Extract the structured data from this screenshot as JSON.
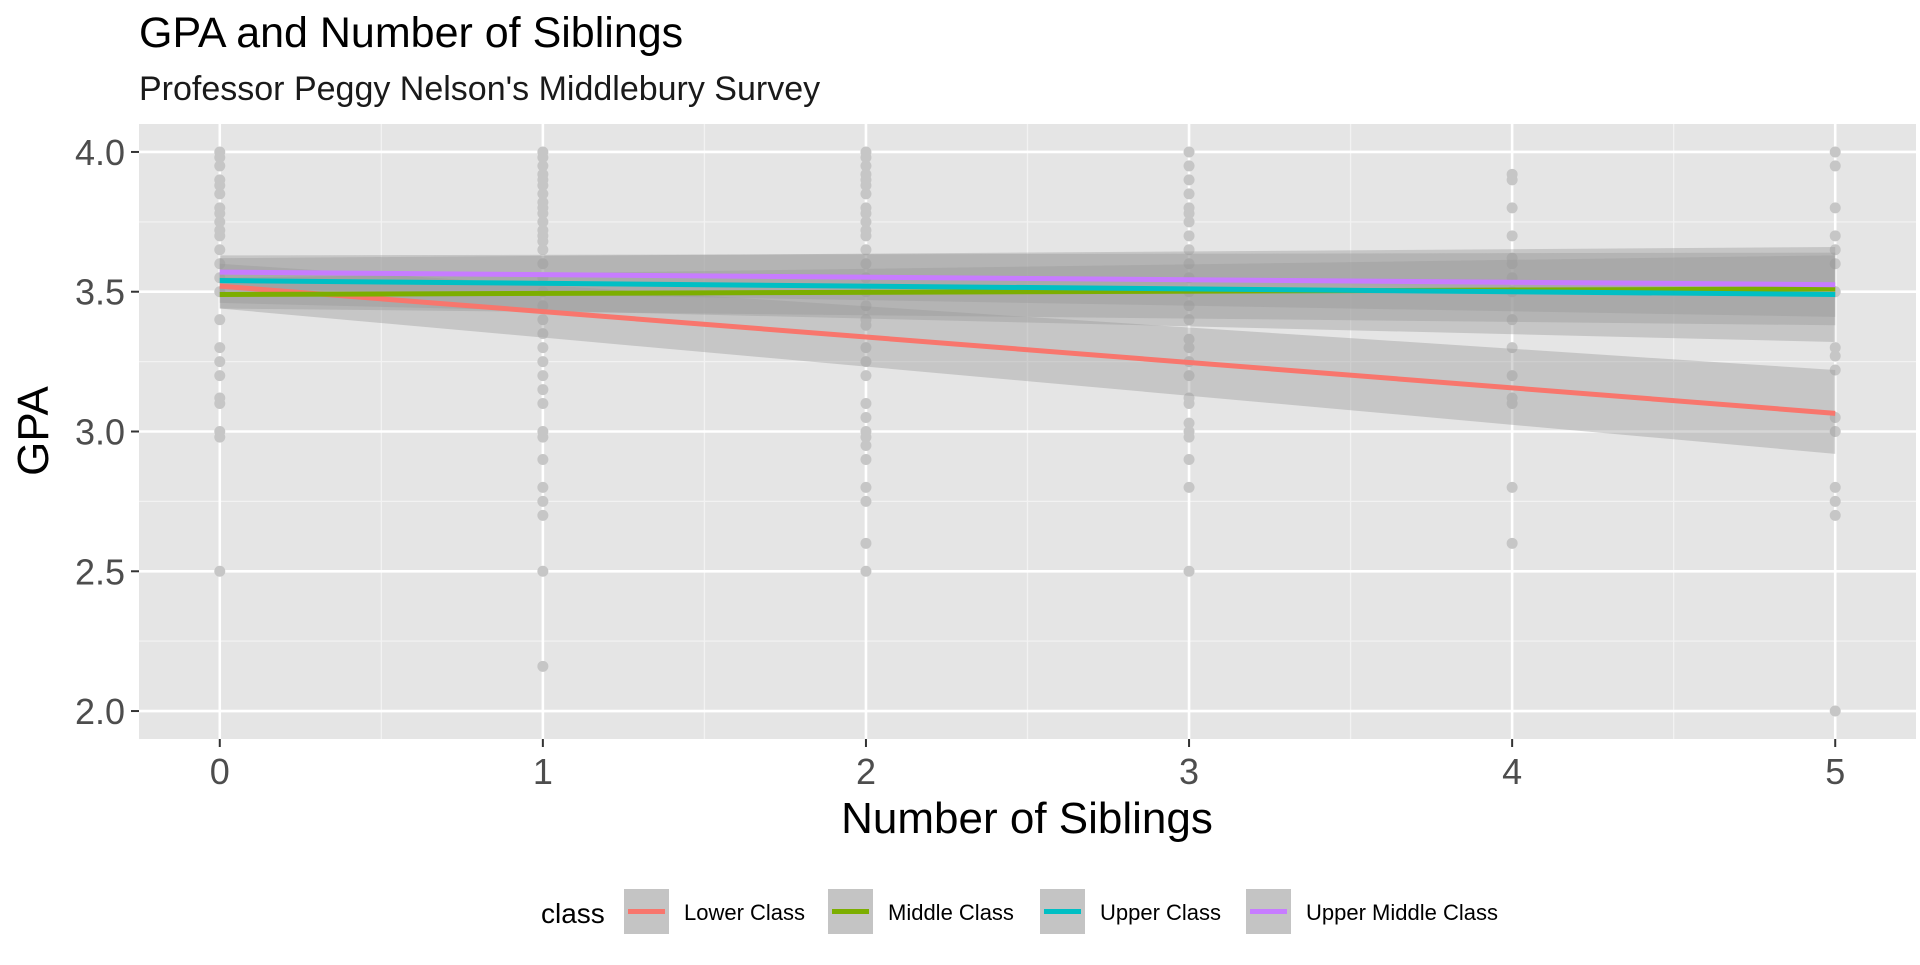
{
  "chart_data": {
    "type": "scatter",
    "title": "GPA and Number of Siblings",
    "subtitle": "Professor Peggy Nelson's Middlebury Survey",
    "xlabel": "Number of Siblings",
    "ylabel": "GPA",
    "xlim": [
      -0.25,
      5.25
    ],
    "ylim": [
      1.9,
      4.1
    ],
    "x_ticks": [
      0,
      1,
      2,
      3,
      4,
      5
    ],
    "x_tick_labels": [
      "0",
      "1",
      "2",
      "3",
      "4",
      "5"
    ],
    "y_ticks": [
      2.0,
      2.5,
      3.0,
      3.5,
      4.0
    ],
    "y_tick_labels": [
      "2.0",
      "2.5",
      "3.0",
      "3.5",
      "4.0"
    ],
    "grid": true,
    "panel_background": "#e5e5e5",
    "point_color": "#c6c6c6",
    "band_color": "#999999",
    "legend": {
      "title": "class",
      "position": "bottom",
      "entries": [
        "Lower Class",
        "Middle Class",
        "Upper Class",
        "Upper Middle Class"
      ]
    },
    "points": [
      {
        "x": 0,
        "y": [
          4.0,
          3.98,
          3.95,
          3.9,
          3.88,
          3.85,
          3.8,
          3.78,
          3.75,
          3.72,
          3.7,
          3.65,
          3.6,
          3.55,
          3.5,
          3.4,
          3.3,
          3.25,
          3.2,
          3.12,
          3.1,
          3.0,
          2.98,
          2.5
        ]
      },
      {
        "x": 1,
        "y": [
          4.0,
          3.98,
          3.95,
          3.92,
          3.9,
          3.88,
          3.85,
          3.82,
          3.8,
          3.78,
          3.75,
          3.72,
          3.7,
          3.68,
          3.65,
          3.6,
          3.55,
          3.5,
          3.45,
          3.4,
          3.35,
          3.3,
          3.25,
          3.2,
          3.15,
          3.1,
          3.0,
          2.98,
          2.9,
          2.8,
          2.75,
          2.7,
          2.5,
          2.16
        ]
      },
      {
        "x": 2,
        "y": [
          4.0,
          3.98,
          3.95,
          3.92,
          3.9,
          3.88,
          3.85,
          3.8,
          3.78,
          3.75,
          3.72,
          3.7,
          3.65,
          3.6,
          3.55,
          3.5,
          3.45,
          3.4,
          3.38,
          3.3,
          3.25,
          3.2,
          3.1,
          3.05,
          3.0,
          2.98,
          2.95,
          2.9,
          2.8,
          2.75,
          2.6,
          2.5
        ]
      },
      {
        "x": 3,
        "y": [
          4.0,
          3.95,
          3.9,
          3.85,
          3.8,
          3.78,
          3.75,
          3.7,
          3.65,
          3.6,
          3.55,
          3.5,
          3.45,
          3.4,
          3.33,
          3.3,
          3.25,
          3.2,
          3.12,
          3.1,
          3.03,
          3.0,
          2.98,
          2.9,
          2.8,
          2.5
        ]
      },
      {
        "x": 4,
        "y": [
          3.92,
          3.9,
          3.8,
          3.7,
          3.62,
          3.6,
          3.55,
          3.5,
          3.4,
          3.3,
          3.2,
          3.12,
          3.1,
          2.8,
          2.6
        ]
      },
      {
        "x": 5,
        "y": [
          4.0,
          3.95,
          3.8,
          3.7,
          3.65,
          3.6,
          3.5,
          3.3,
          3.27,
          3.22,
          3.05,
          3.0,
          2.8,
          2.75,
          2.7,
          2.0
        ]
      }
    ],
    "series": [
      {
        "name": "Lower Class",
        "color": "#f8766d",
        "x": [
          0,
          5
        ],
        "y": [
          3.52,
          3.065
        ],
        "band_lower": [
          3.44,
          2.92
        ],
        "band_upper": [
          3.6,
          3.22
        ]
      },
      {
        "name": "Middle Class",
        "color": "#7cae00",
        "x": [
          0,
          5
        ],
        "y": [
          3.49,
          3.51
        ],
        "band_lower": [
          3.44,
          3.38
        ],
        "band_upper": [
          3.55,
          3.63
        ]
      },
      {
        "name": "Upper Class",
        "color": "#00bfc4",
        "x": [
          0,
          5
        ],
        "y": [
          3.54,
          3.49
        ],
        "band_lower": [
          3.46,
          3.32
        ],
        "band_upper": [
          3.62,
          3.66
        ]
      },
      {
        "name": "Upper Middle Class",
        "color": "#c77cff",
        "x": [
          0,
          5
        ],
        "y": [
          3.57,
          3.525
        ],
        "band_lower": [
          3.51,
          3.41
        ],
        "band_upper": [
          3.63,
          3.64
        ]
      }
    ]
  }
}
